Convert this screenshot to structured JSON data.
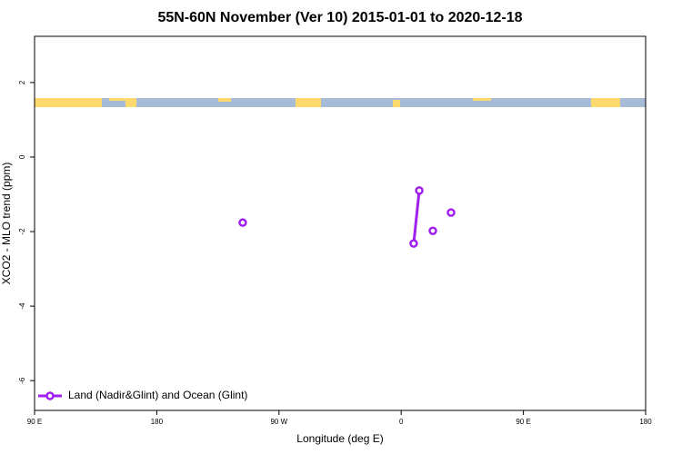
{
  "chart_data": {
    "type": "line",
    "title": "55N-60N November (Ver 10)   2015-01-01 to 2020-12-18",
    "x_label": "Longitude (deg E)",
    "y_label": "XCO2 - MLO trend (ppm)",
    "xlim": [
      -270,
      180
    ],
    "xticks": [
      {
        "value": -270,
        "label": "90 E"
      },
      {
        "value": -180,
        "label": "180"
      },
      {
        "value": -90,
        "label": "90 W"
      },
      0,
      {
        "value": 90,
        "label": "90 E"
      },
      180
    ],
    "ylim": [
      -6.8,
      3.24
    ],
    "yticks": [
      -6,
      -4,
      -2,
      0,
      2
    ],
    "legend": "bottom-left",
    "series": [
      {
        "name": "Land (Nadir&Glint) and Ocean (Glint)",
        "color": "#a020f0",
        "x": [
          -116.7,
          null,
          9.2,
          13.3,
          null,
          23.3,
          null,
          36.7
        ],
        "values": [
          -1.76,
          null,
          -2.32,
          -0.9,
          null,
          -1.98,
          null,
          -1.49
        ]
      }
    ]
  }
}
